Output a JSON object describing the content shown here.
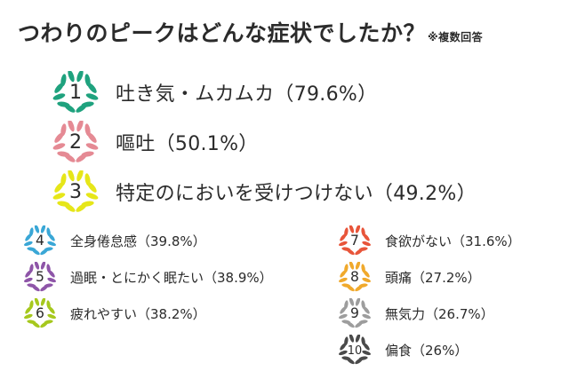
{
  "chart_data": {
    "type": "table",
    "title": "つわりのピークはどんな症状でしたか？",
    "note": "※複数回答",
    "items": [
      {
        "rank": "1",
        "label": "吐き気・ムカムカ",
        "value": 79.6,
        "value_text": "（79.6%）",
        "color": "#1fa27e"
      },
      {
        "rank": "2",
        "label": "嘔吐",
        "value": 50.1,
        "value_text": "（50.1%）",
        "color": "#e58a94"
      },
      {
        "rank": "3",
        "label": "特定のにおいを受けつけない",
        "value": 49.2,
        "value_text": "（49.2%）",
        "color": "#e6e619"
      },
      {
        "rank": "4",
        "label": "全身倦怠感",
        "value": 39.8,
        "value_text": "（39.8%）",
        "color": "#3aa7d6"
      },
      {
        "rank": "5",
        "label": "過眠・とにかく眠たい",
        "value": 38.9,
        "value_text": "（38.9%）",
        "color": "#8e55a8"
      },
      {
        "rank": "6",
        "label": "疲れやすい",
        "value": 38.2,
        "value_text": "（38.2%）",
        "color": "#a6c81e"
      },
      {
        "rank": "7",
        "label": "食欲がない",
        "value": 31.6,
        "value_text": "（31.6%）",
        "color": "#e8553a"
      },
      {
        "rank": "8",
        "label": "頭痛",
        "value": 27.2,
        "value_text": "（27.2%）",
        "color": "#f0a92c"
      },
      {
        "rank": "9",
        "label": "無気力",
        "value": 26.7,
        "value_text": "（26.7%）",
        "color": "#9d9d9d"
      },
      {
        "rank": "10",
        "label": "偏食",
        "value": 26,
        "value_text": "（26%）",
        "color": "#4a4a4a"
      }
    ]
  }
}
